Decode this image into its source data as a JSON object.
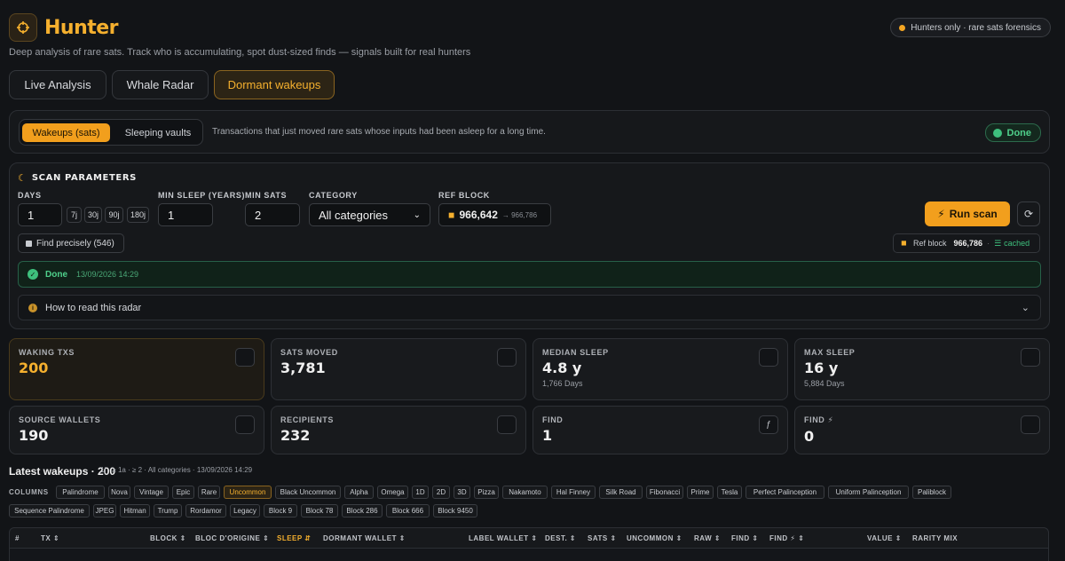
{
  "header": {
    "title": "Hunter",
    "subtitle": "Deep analysis of rare sats. Track who is accumulating, spot dust-sized finds — signals built for real hunters",
    "badge": "Hunters only · rare sats forensics"
  },
  "main_tabs": [
    "Live Analysis",
    "Whale Radar",
    "Dormant wakeups"
  ],
  "main_tab_active": "Dormant wakeups",
  "sub_tabs": [
    "Wakeups (sats)",
    "Sleeping vaults"
  ],
  "sub_tab_active": "Wakeups (sats)",
  "sub_description": "Transactions that just moved rare sats whose inputs had been asleep for a long time.",
  "status_badge": "Done",
  "scan": {
    "title": "SCAN PARAMETERS",
    "days_label": "DAYS",
    "days_value": "1",
    "day_presets": [
      "7j",
      "30j",
      "90j",
      "180j"
    ],
    "min_sleep_label": "MIN SLEEP (YEARS)",
    "min_sleep_value": "1",
    "min_sats_label": "MIN SATS",
    "min_sats_value": "2",
    "category_label": "CATEGORY",
    "category_value": "All categories",
    "ref_block_label": "REF BLOCK",
    "ref_block_value": "966,642",
    "ref_block_hint": "→ 966,786",
    "find_precisely": "Find precisely (546)",
    "run_label": "Run scan",
    "ref_info_label": "Ref block",
    "ref_info_value": "966,786",
    "cached": "cached",
    "done_label": "Done",
    "done_time": "13/09/2026 14:29",
    "how_to": "How to read this radar"
  },
  "stats": [
    {
      "label": "WAKING TXS",
      "value": "200",
      "sub": "",
      "icon": "box-icon"
    },
    {
      "label": "SATS MOVED",
      "value": "3,781",
      "sub": "",
      "icon": "box-icon"
    },
    {
      "label": "MEDIAN SLEEP",
      "value": "4.8 y",
      "sub": "1,766 Days",
      "icon": "box-icon"
    },
    {
      "label": "MAX SLEEP",
      "value": "16 y",
      "sub": "5,884 Days",
      "icon": "box-icon"
    },
    {
      "label": "SOURCE WALLETS",
      "value": "190",
      "sub": "",
      "icon": "box-icon"
    },
    {
      "label": "RECIPIENTS",
      "value": "232",
      "sub": "",
      "icon": "box-icon"
    },
    {
      "label": "FIND",
      "value": "1",
      "sub": "",
      "icon": "ƒ"
    },
    {
      "label": "FIND ⚡",
      "value": "0",
      "sub": "",
      "icon": "box-icon"
    }
  ],
  "latest": {
    "title": "Latest wakeups · 200",
    "meta": "1j · ≥ 1a · ≥ 2 · All categories · 13/09/2026 14:29"
  },
  "columns_label": "COLUMNS",
  "column_tags_row1": [
    "Palindrome",
    "Nova",
    "Vintage",
    "Epic",
    "Rare",
    "Uncommon",
    "Black Uncommon",
    "Alpha",
    "Omega",
    "1D",
    "2D",
    "3D",
    "Pizza",
    "Nakamoto",
    "Hal Finney",
    "Silk Road",
    "Fibonacci",
    "Prime",
    "Tesla",
    "Perfect Palinception",
    "Uniform Palinception",
    "Paliblock"
  ],
  "column_tags_row2": [
    "Sequence Palindrome",
    "JPEG",
    "Hitman",
    "Trump",
    "Rordamor",
    "Legacy",
    "Block 9",
    "Block 78",
    "Block 286",
    "Block 666",
    "Block 9450"
  ],
  "column_tag_active": "Uncommon",
  "table_headers": [
    "#",
    "TX ⇕",
    "BLOCK ⇕",
    "BLOC D'ORIGINE ⇕",
    "SLEEP ⇵",
    "DORMANT WALLET ⇕",
    "LABEL WALLET ⇕",
    "DEST. ⇕",
    "SATS ⇕",
    "UNCOMMON ⇕",
    "RAW ⇕",
    "FIND ⇕",
    "FIND ⚡ ⇕",
    "VALUE ⇕",
    "RARITY MIX"
  ],
  "colors": {
    "accent": "#f29f1d",
    "success": "#3ec07d",
    "background": "#121417"
  }
}
